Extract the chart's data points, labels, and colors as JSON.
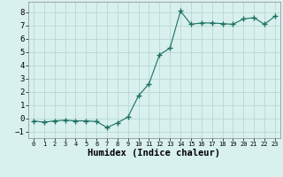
{
  "x": [
    0,
    1,
    2,
    3,
    4,
    5,
    6,
    7,
    8,
    9,
    10,
    11,
    12,
    13,
    14,
    15,
    16,
    17,
    18,
    19,
    20,
    21,
    22,
    23
  ],
  "y": [
    -0.2,
    -0.3,
    -0.2,
    -0.15,
    -0.2,
    -0.2,
    -0.25,
    -0.7,
    -0.35,
    0.1,
    1.7,
    2.6,
    4.8,
    5.3,
    8.1,
    7.1,
    7.2,
    7.2,
    7.15,
    7.1,
    7.5,
    7.6,
    7.1,
    7.7
  ],
  "line_color": "#1a7060",
  "marker": "+",
  "marker_size": 4,
  "background_color": "#d8f0ee",
  "grid_color": "#b0d4d0",
  "xlabel": "Humidex (Indice chaleur)",
  "xlim": [
    -0.5,
    23.5
  ],
  "ylim": [
    -1.5,
    8.8
  ],
  "yticks": [
    -1,
    0,
    1,
    2,
    3,
    4,
    5,
    6,
    7,
    8
  ],
  "xticks": [
    0,
    1,
    2,
    3,
    4,
    5,
    6,
    7,
    8,
    9,
    10,
    11,
    12,
    13,
    14,
    15,
    16,
    17,
    18,
    19,
    20,
    21,
    22,
    23
  ],
  "xlabel_fontsize": 7.5,
  "tick_fontsize": 6.5
}
